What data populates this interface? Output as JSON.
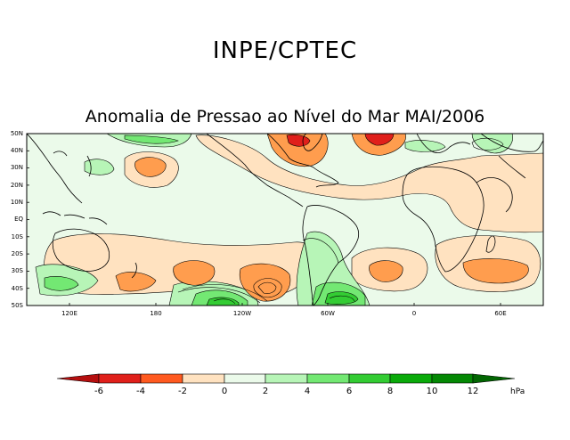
{
  "header": {
    "agency": "INPE/CPTEC"
  },
  "map": {
    "title": "Anomalia de Pressao ao Nível do Mar MAI/2006",
    "lat_labels": [
      "50N",
      "40N",
      "30N",
      "20N",
      "10N",
      "EQ",
      "10S",
      "20S",
      "30S",
      "40S",
      "50S"
    ],
    "lon_labels": [
      "120E",
      "180",
      "120W",
      "60W",
      "0",
      "60E"
    ],
    "anomaly_regions": [
      {
        "value": -3,
        "location": "north-central Pacific",
        "color": "#ff7a2e"
      },
      {
        "value": -3,
        "location": "north-east Pacific",
        "color": "#ff7a2e"
      },
      {
        "value": -5,
        "location": "North Atlantic",
        "color": "#e0201b"
      },
      {
        "value": -3,
        "location": "South Pacific 150W",
        "color": "#ff7a2e"
      },
      {
        "value": -4,
        "location": "South-east Pacific",
        "color": "#ff7a2e"
      },
      {
        "value": -3,
        "location": "South Atlantic",
        "color": "#ff7a2e"
      },
      {
        "value": -3,
        "location": "South Indian Ocean",
        "color": "#ff7a2e"
      },
      {
        "value": 7,
        "location": "South Pacific 150W-170W",
        "color": "#33bb33"
      },
      {
        "value": 7,
        "location": "Southern South America",
        "color": "#33bb33"
      }
    ]
  },
  "colorbar": {
    "labels": [
      "-6",
      "-4",
      "-2",
      "0",
      "2",
      "4",
      "6",
      "8",
      "10",
      "12"
    ],
    "colors": [
      "#b50f0f",
      "#e0201b",
      "#ff5a20",
      "#ff9d4e",
      "#ffe2c0",
      "#ebfaea",
      "#b7f5b7",
      "#73e873",
      "#33cc33",
      "#0aaa0a",
      "#048804",
      "#026602"
    ],
    "unit": "hPa"
  },
  "colors": {
    "land_outline": "#000000",
    "neutral_pos": "#ebfaea",
    "neutral_neg": "#ffe2c0"
  }
}
